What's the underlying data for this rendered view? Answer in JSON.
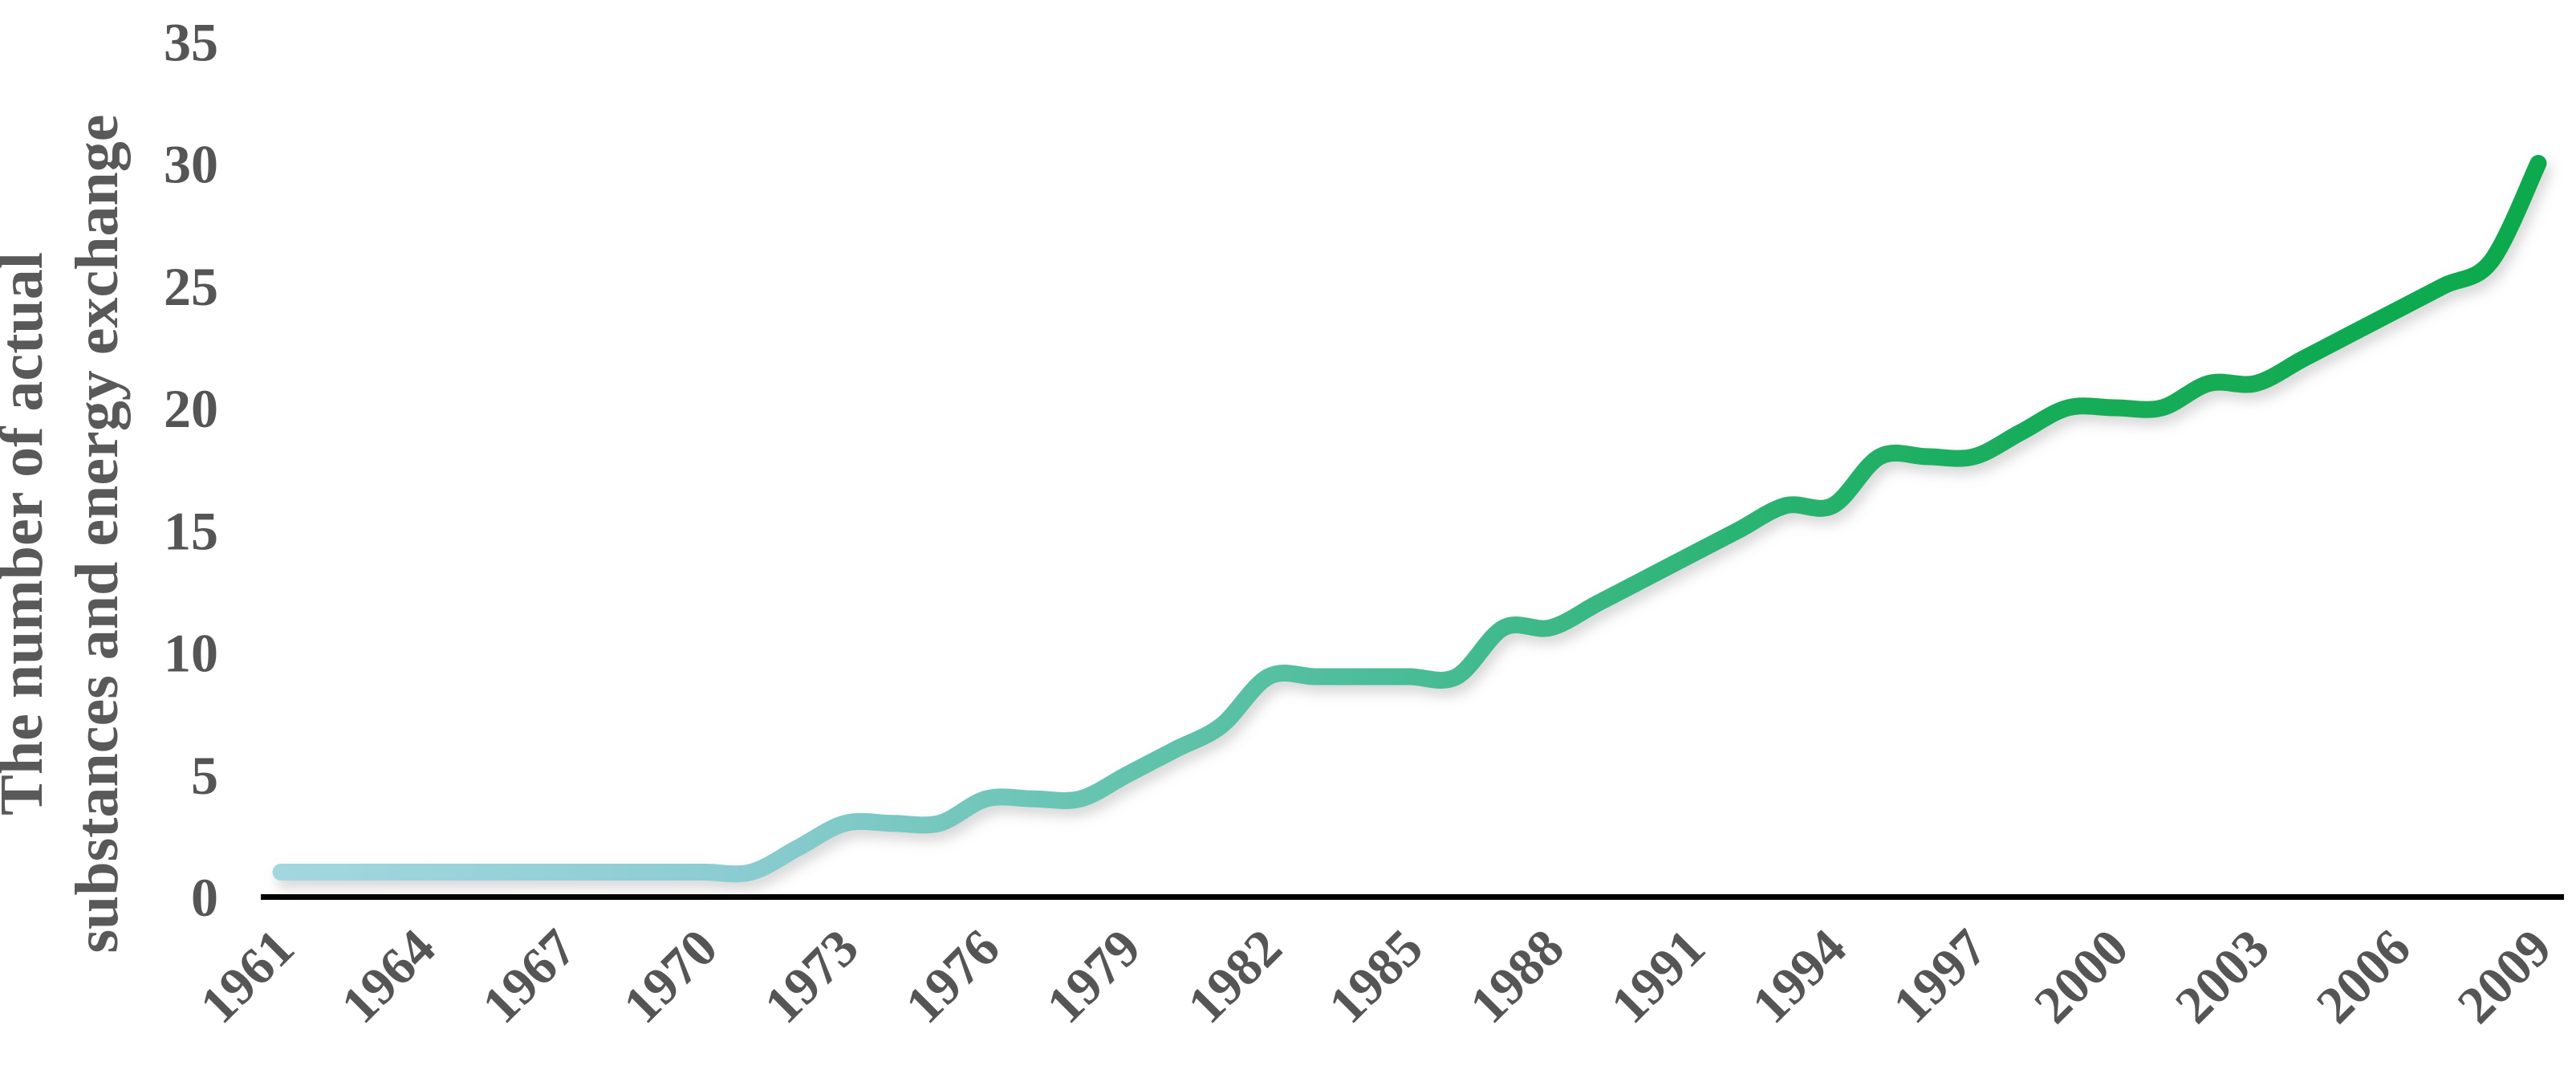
{
  "chart_data": {
    "type": "line",
    "title": "",
    "ylabel": "The number of actual substances and energy exchange",
    "ylabel_lines": [
      "The number of actual",
      "substances and energy exchange"
    ],
    "xlabel": "",
    "x": [
      1961,
      1962,
      1963,
      1964,
      1965,
      1966,
      1967,
      1968,
      1969,
      1970,
      1971,
      1972,
      1973,
      1974,
      1975,
      1976,
      1977,
      1978,
      1979,
      1980,
      1981,
      1982,
      1983,
      1984,
      1985,
      1986,
      1987,
      1988,
      1989,
      1990,
      1991,
      1992,
      1993,
      1994,
      1995,
      1996,
      1997,
      1998,
      1999,
      2000,
      2001,
      2002,
      2003,
      2004,
      2005,
      2006,
      2007,
      2008,
      2009
    ],
    "series": [
      {
        "name": "The number of actual substances and energy exchange",
        "values": [
          1,
          1,
          1,
          1,
          1,
          1,
          1,
          1,
          1,
          1,
          1,
          2,
          3,
          3,
          3,
          4,
          4,
          4,
          5,
          6,
          7,
          9,
          9,
          9,
          9,
          9,
          11,
          11,
          12,
          13,
          14,
          15,
          16,
          16,
          18,
          18,
          18,
          19,
          20,
          20,
          20,
          21,
          21,
          22,
          23,
          24,
          25,
          26,
          30
        ]
      }
    ],
    "x_tick_labels": [
      "1961",
      "1964",
      "1967",
      "1970",
      "1973",
      "1976",
      "1979",
      "1982",
      "1985",
      "1988",
      "1991",
      "1994",
      "1997",
      "2000",
      "2003",
      "2006",
      "2009"
    ],
    "y_tick_labels": [
      "0",
      "5",
      "10",
      "15",
      "20",
      "25",
      "30",
      "35"
    ],
    "ylim": [
      0,
      35
    ],
    "xlim": [
      1961,
      2009
    ],
    "grid": false,
    "legend": false,
    "smooth": true,
    "line_gradient_stops": [
      {
        "o": 0.0,
        "c": "#A3D7DF"
      },
      {
        "o": 0.2,
        "c": "#8BCCD2"
      },
      {
        "o": 0.36,
        "c": "#66C4B0"
      },
      {
        "o": 0.5,
        "c": "#49BC97"
      },
      {
        "o": 0.64,
        "c": "#2CB474"
      },
      {
        "o": 0.78,
        "c": "#17AC59"
      },
      {
        "o": 1.0,
        "c": "#0CA94D"
      }
    ],
    "axis_line_color": "#000000",
    "label_color": "#555555",
    "title_color": "#595959"
  }
}
